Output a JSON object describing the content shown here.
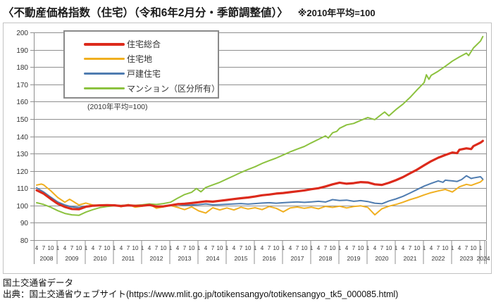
{
  "header": {
    "title": "〈不動産価格指数（住宅）（令和6年2月分・季節調整値）〉",
    "note": "※2010年平均=100"
  },
  "chart_note": "(2010年平均=100)",
  "footer": {
    "line1": "国土交通省データ",
    "line2": "出典：国土交通省ウェブサイト(https://www.mlit.go.jp/totikensangyo/totikensangyo_tk5_000085.html)"
  },
  "chart_data": {
    "type": "line",
    "title": "不動産価格指数（住宅）（令和6年2月分・季節調整値）",
    "base_note": "2010年平均=100",
    "x_start": "2008-04",
    "x_end": "2024-02",
    "x_tick_months": [
      4,
      7,
      10,
      1
    ],
    "years": [
      2008,
      2009,
      2010,
      2011,
      2012,
      2013,
      2014,
      2015,
      2016,
      2017,
      2018,
      2019,
      2020,
      2021,
      2022,
      2023,
      2024
    ],
    "ylim": [
      80,
      200
    ],
    "ytick_step": 10,
    "grid": true,
    "legend_position": "top-left",
    "colors": {
      "grid": "#8f8f8f",
      "axis_text": "#333333",
      "frame": "#8f8f8f"
    },
    "series": [
      {
        "name": "住宅総合",
        "color": "#dc2a1b",
        "stroke_width": 3.2,
        "points": [
          [
            2008.25,
            108.8
          ],
          [
            2008.5,
            106.8
          ],
          [
            2008.75,
            103.8
          ],
          [
            2009.0,
            101.0
          ],
          [
            2009.25,
            99.2
          ],
          [
            2009.5,
            98.0
          ],
          [
            2009.75,
            97.8
          ],
          [
            2010.0,
            99.3
          ],
          [
            2010.25,
            99.9
          ],
          [
            2010.5,
            100.1
          ],
          [
            2010.75,
            100.2
          ],
          [
            2011.0,
            100.1
          ],
          [
            2011.25,
            99.7
          ],
          [
            2011.5,
            100.1
          ],
          [
            2011.75,
            99.8
          ],
          [
            2012.0,
            99.9
          ],
          [
            2012.25,
            100.3
          ],
          [
            2012.5,
            99.4
          ],
          [
            2012.75,
            99.5
          ],
          [
            2013.0,
            100.1
          ],
          [
            2013.25,
            100.8
          ],
          [
            2013.5,
            101.0
          ],
          [
            2013.75,
            101.4
          ],
          [
            2014.0,
            101.9
          ],
          [
            2014.25,
            102.4
          ],
          [
            2014.5,
            102.2
          ],
          [
            2014.75,
            102.7
          ],
          [
            2015.0,
            103.2
          ],
          [
            2015.25,
            103.7
          ],
          [
            2015.5,
            104.2
          ],
          [
            2015.75,
            104.6
          ],
          [
            2016.0,
            105.2
          ],
          [
            2016.25,
            105.9
          ],
          [
            2016.5,
            106.3
          ],
          [
            2016.75,
            106.9
          ],
          [
            2017.0,
            107.2
          ],
          [
            2017.25,
            107.7
          ],
          [
            2017.5,
            108.2
          ],
          [
            2017.75,
            108.7
          ],
          [
            2018.0,
            109.4
          ],
          [
            2018.25,
            110.0
          ],
          [
            2018.5,
            111.0
          ],
          [
            2018.75,
            112.2
          ],
          [
            2019.0,
            113.2
          ],
          [
            2019.25,
            112.6
          ],
          [
            2019.5,
            112.9
          ],
          [
            2019.75,
            113.5
          ],
          [
            2020.0,
            113.3
          ],
          [
            2020.25,
            112.2
          ],
          [
            2020.5,
            111.9
          ],
          [
            2020.75,
            113.1
          ],
          [
            2021.0,
            114.6
          ],
          [
            2021.25,
            116.4
          ],
          [
            2021.5,
            118.6
          ],
          [
            2021.75,
            120.7
          ],
          [
            2022.0,
            123.2
          ],
          [
            2022.25,
            125.6
          ],
          [
            2022.5,
            127.6
          ],
          [
            2022.75,
            129.2
          ],
          [
            2023.0,
            130.6
          ],
          [
            2023.17,
            130.2
          ],
          [
            2023.25,
            132.2
          ],
          [
            2023.5,
            133.0
          ],
          [
            2023.67,
            132.6
          ],
          [
            2023.75,
            134.3
          ],
          [
            2024.0,
            136.3
          ],
          [
            2024.083,
            137.3
          ]
        ]
      },
      {
        "name": "住宅地",
        "color": "#f0af20",
        "stroke_width": 2,
        "points": [
          [
            2008.25,
            111.8
          ],
          [
            2008.42,
            112.4
          ],
          [
            2008.5,
            111.9
          ],
          [
            2008.75,
            108.5
          ],
          [
            2009.0,
            104.6
          ],
          [
            2009.25,
            101.9
          ],
          [
            2009.42,
            103.6
          ],
          [
            2009.5,
            102.8
          ],
          [
            2009.75,
            100.3
          ],
          [
            2010.0,
            101.4
          ],
          [
            2010.25,
            100.2
          ],
          [
            2010.5,
            100.0
          ],
          [
            2010.75,
            100.1
          ],
          [
            2011.0,
            100.4
          ],
          [
            2011.25,
            99.3
          ],
          [
            2011.5,
            100.6
          ],
          [
            2011.75,
            99.0
          ],
          [
            2012.0,
            99.6
          ],
          [
            2012.25,
            100.8
          ],
          [
            2012.5,
            98.4
          ],
          [
            2012.75,
            99.2
          ],
          [
            2013.0,
            100.0
          ],
          [
            2013.25,
            98.9
          ],
          [
            2013.5,
            97.6
          ],
          [
            2013.75,
            99.2
          ],
          [
            2014.0,
            96.9
          ],
          [
            2014.25,
            95.6
          ],
          [
            2014.5,
            98.7
          ],
          [
            2014.75,
            97.4
          ],
          [
            2015.0,
            98.6
          ],
          [
            2015.25,
            97.4
          ],
          [
            2015.5,
            99.0
          ],
          [
            2015.75,
            98.0
          ],
          [
            2016.0,
            98.7
          ],
          [
            2016.25,
            97.6
          ],
          [
            2016.5,
            99.4
          ],
          [
            2016.75,
            98.4
          ],
          [
            2017.0,
            96.3
          ],
          [
            2017.25,
            98.6
          ],
          [
            2017.5,
            99.1
          ],
          [
            2017.75,
            98.4
          ],
          [
            2018.0,
            99.0
          ],
          [
            2018.25,
            98.1
          ],
          [
            2018.5,
            99.5
          ],
          [
            2018.75,
            98.9
          ],
          [
            2019.0,
            99.6
          ],
          [
            2019.25,
            98.6
          ],
          [
            2019.5,
            99.4
          ],
          [
            2019.75,
            99.8
          ],
          [
            2020.0,
            98.9
          ],
          [
            2020.25,
            94.6
          ],
          [
            2020.5,
            98.1
          ],
          [
            2020.75,
            99.6
          ],
          [
            2021.0,
            100.6
          ],
          [
            2021.25,
            101.9
          ],
          [
            2021.5,
            103.4
          ],
          [
            2021.75,
            104.6
          ],
          [
            2022.0,
            106.1
          ],
          [
            2022.25,
            107.4
          ],
          [
            2022.5,
            108.4
          ],
          [
            2022.75,
            109.3
          ],
          [
            2023.0,
            107.8
          ],
          [
            2023.25,
            110.8
          ],
          [
            2023.5,
            112.2
          ],
          [
            2023.67,
            111.6
          ],
          [
            2023.75,
            112.1
          ],
          [
            2024.0,
            113.6
          ],
          [
            2024.083,
            114.8
          ]
        ]
      },
      {
        "name": "戸建住宅",
        "color": "#4f7cb0",
        "stroke_width": 2,
        "points": [
          [
            2008.25,
            110.2
          ],
          [
            2008.5,
            107.8
          ],
          [
            2008.75,
            104.8
          ],
          [
            2009.0,
            102.0
          ],
          [
            2009.25,
            100.3
          ],
          [
            2009.5,
            99.2
          ],
          [
            2009.75,
            98.8
          ],
          [
            2010.0,
            99.6
          ],
          [
            2010.25,
            100.0
          ],
          [
            2010.5,
            100.2
          ],
          [
            2010.75,
            100.1
          ],
          [
            2011.0,
            100.3
          ],
          [
            2011.25,
            99.9
          ],
          [
            2011.5,
            100.3
          ],
          [
            2011.75,
            99.8
          ],
          [
            2012.0,
            100.0
          ],
          [
            2012.25,
            100.4
          ],
          [
            2012.5,
            99.6
          ],
          [
            2012.75,
            99.7
          ],
          [
            2013.0,
            100.1
          ],
          [
            2013.25,
            100.6
          ],
          [
            2013.5,
            100.2
          ],
          [
            2013.75,
            100.3
          ],
          [
            2014.0,
            100.5
          ],
          [
            2014.25,
            100.9
          ],
          [
            2014.5,
            100.4
          ],
          [
            2014.75,
            100.5
          ],
          [
            2015.0,
            100.7
          ],
          [
            2015.25,
            100.9
          ],
          [
            2015.5,
            101.1
          ],
          [
            2015.75,
            100.8
          ],
          [
            2016.0,
            101.1
          ],
          [
            2016.25,
            101.4
          ],
          [
            2016.5,
            101.6
          ],
          [
            2016.75,
            101.3
          ],
          [
            2017.0,
            101.6
          ],
          [
            2017.25,
            101.9
          ],
          [
            2017.5,
            102.1
          ],
          [
            2017.75,
            101.8
          ],
          [
            2018.0,
            102.1
          ],
          [
            2018.25,
            102.4
          ],
          [
            2018.5,
            102.0
          ],
          [
            2018.75,
            103.4
          ],
          [
            2019.0,
            102.9
          ],
          [
            2019.25,
            103.1
          ],
          [
            2019.5,
            102.4
          ],
          [
            2019.75,
            102.8
          ],
          [
            2020.0,
            102.3
          ],
          [
            2020.25,
            101.3
          ],
          [
            2020.5,
            101.0
          ],
          [
            2020.75,
            102.6
          ],
          [
            2021.0,
            103.8
          ],
          [
            2021.25,
            105.3
          ],
          [
            2021.5,
            107.2
          ],
          [
            2021.75,
            109.2
          ],
          [
            2022.0,
            111.2
          ],
          [
            2022.25,
            112.8
          ],
          [
            2022.5,
            114.2
          ],
          [
            2022.67,
            113.4
          ],
          [
            2022.75,
            114.6
          ],
          [
            2023.0,
            114.2
          ],
          [
            2023.17,
            113.9
          ],
          [
            2023.33,
            115.0
          ],
          [
            2023.5,
            117.2
          ],
          [
            2023.67,
            115.6
          ],
          [
            2023.75,
            115.9
          ],
          [
            2024.0,
            116.6
          ],
          [
            2024.083,
            115.2
          ]
        ]
      },
      {
        "name": "マンション（区分所有）",
        "color": "#8cc23f",
        "stroke_width": 2,
        "points": [
          [
            2008.25,
            101.6
          ],
          [
            2008.5,
            100.6
          ],
          [
            2008.75,
            99.0
          ],
          [
            2009.0,
            97.0
          ],
          [
            2009.25,
            95.4
          ],
          [
            2009.5,
            94.6
          ],
          [
            2009.75,
            94.3
          ],
          [
            2010.0,
            96.2
          ],
          [
            2010.25,
            97.6
          ],
          [
            2010.5,
            98.8
          ],
          [
            2010.75,
            99.4
          ],
          [
            2011.0,
            99.8
          ],
          [
            2011.25,
            100.0
          ],
          [
            2011.5,
            100.3
          ],
          [
            2011.75,
            100.1
          ],
          [
            2012.0,
            100.4
          ],
          [
            2012.25,
            100.9
          ],
          [
            2012.5,
            100.6
          ],
          [
            2012.75,
            101.1
          ],
          [
            2013.0,
            101.9
          ],
          [
            2013.25,
            104.2
          ],
          [
            2013.5,
            106.3
          ],
          [
            2013.75,
            107.6
          ],
          [
            2013.92,
            109.8
          ],
          [
            2014.08,
            107.9
          ],
          [
            2014.25,
            110.4
          ],
          [
            2014.5,
            111.9
          ],
          [
            2014.75,
            113.4
          ],
          [
            2015.0,
            115.3
          ],
          [
            2015.25,
            117.2
          ],
          [
            2015.5,
            119.1
          ],
          [
            2015.75,
            120.8
          ],
          [
            2016.0,
            122.4
          ],
          [
            2016.25,
            124.3
          ],
          [
            2016.5,
            125.9
          ],
          [
            2016.75,
            127.4
          ],
          [
            2017.0,
            129.2
          ],
          [
            2017.25,
            131.0
          ],
          [
            2017.5,
            132.6
          ],
          [
            2017.75,
            134.1
          ],
          [
            2018.0,
            136.2
          ],
          [
            2018.25,
            138.2
          ],
          [
            2018.5,
            140.2
          ],
          [
            2018.6,
            139.0
          ],
          [
            2018.75,
            142.0
          ],
          [
            2018.9,
            142.8
          ],
          [
            2019.0,
            144.6
          ],
          [
            2019.25,
            146.6
          ],
          [
            2019.5,
            147.4
          ],
          [
            2019.75,
            149.2
          ],
          [
            2020.0,
            150.8
          ],
          [
            2020.25,
            149.6
          ],
          [
            2020.5,
            152.8
          ],
          [
            2020.6,
            154.0
          ],
          [
            2020.75,
            151.8
          ],
          [
            2021.0,
            155.4
          ],
          [
            2021.25,
            158.6
          ],
          [
            2021.5,
            162.4
          ],
          [
            2021.75,
            166.8
          ],
          [
            2022.0,
            171.0
          ],
          [
            2022.08,
            175.5
          ],
          [
            2022.17,
            172.9
          ],
          [
            2022.25,
            175.2
          ],
          [
            2022.5,
            177.6
          ],
          [
            2022.75,
            180.4
          ],
          [
            2023.0,
            183.4
          ],
          [
            2023.25,
            185.8
          ],
          [
            2023.5,
            188.0
          ],
          [
            2023.58,
            186.6
          ],
          [
            2023.75,
            191.0
          ],
          [
            2024.0,
            195.0
          ],
          [
            2024.083,
            197.6
          ]
        ]
      }
    ]
  }
}
